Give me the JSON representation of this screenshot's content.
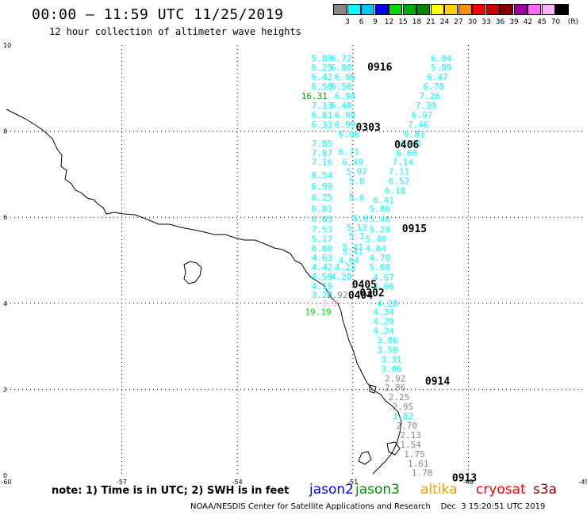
{
  "title": "00:00 — 11:59 UTC 11/25/2019",
  "subtitle": "12 hour collection of altimeter wave heights",
  "legend": {
    "unit": "(ft)",
    "items": [
      {
        "label": "3",
        "color": "#888888"
      },
      {
        "label": "6",
        "color": "#00ffff"
      },
      {
        "label": "9",
        "color": "#00c8ff"
      },
      {
        "label": "12",
        "color": "#0000ff"
      },
      {
        "label": "15",
        "color": "#00d800"
      },
      {
        "label": "18",
        "color": "#00b000"
      },
      {
        "label": "21",
        "color": "#008800"
      },
      {
        "label": "24",
        "color": "#ffff00"
      },
      {
        "label": "27",
        "color": "#ffd000"
      },
      {
        "label": "30",
        "color": "#ff9000"
      },
      {
        "label": "33",
        "color": "#ff0000"
      },
      {
        "label": "36",
        "color": "#c80000"
      },
      {
        "label": "39",
        "color": "#880000"
      },
      {
        "label": "42",
        "color": "#a000a0"
      },
      {
        "label": "45",
        "color": "#ff66ff"
      },
      {
        "label": "70",
        "color": "#ffb0ff"
      },
      {
        "label": "",
        "color": "#000000"
      }
    ]
  },
  "note": "note:  1) Time is in UTC;  2) SWH is in feet",
  "satellites": [
    {
      "name": "jason2",
      "color": "#0000ff"
    },
    {
      "name": "jason3",
      "color": "#009000"
    },
    {
      "name": "altika",
      "color": "#ff9900"
    },
    {
      "name": "cryosat",
      "color": "#ff0000"
    },
    {
      "name": "s3a",
      "color": "#990000"
    }
  ],
  "footer": "NOAA/NESDIS Center for Satellite Applications and Research    Dec  3 15:20:51 UTC 2019",
  "chart_data": {
    "type": "scatter",
    "xlim": [
      -60,
      -45
    ],
    "ylim": [
      0,
      10
    ],
    "xticks": [
      -60,
      -57,
      -54,
      -51,
      -48,
      -45
    ],
    "yticks": [
      0,
      2,
      4,
      6,
      8,
      10
    ],
    "grid": true,
    "time_labels": [
      {
        "text": "0916",
        "x": -50.3,
        "y": 9.5,
        "color": "#ff9900"
      },
      {
        "text": "0303",
        "x": -50.6,
        "y": 8.1,
        "color": "#ff0000"
      },
      {
        "text": "0406",
        "x": -49.6,
        "y": 7.7,
        "color": "#009000"
      },
      {
        "text": "0915",
        "x": -49.4,
        "y": 5.75,
        "color": "#ff9900"
      },
      {
        "text": "0405",
        "x": -50.7,
        "y": 4.45,
        "color": "#009000"
      },
      {
        "text": "0404",
        "x": -50.8,
        "y": 4.2,
        "color": "#009000"
      },
      {
        "text": "0302",
        "x": -50.5,
        "y": 4.25,
        "color": "#ff0000"
      },
      {
        "text": "0914",
        "x": -48.8,
        "y": 2.2,
        "color": "#ff9900"
      },
      {
        "text": "0913",
        "x": -48.1,
        "y": -0.05,
        "color": "#ff9900"
      }
    ],
    "points": [
      {
        "x": -51.8,
        "y": 9.7,
        "v": "5.89",
        "c": "#00ffff"
      },
      {
        "x": -51.3,
        "y": 9.7,
        "v": "6.72",
        "c": "#00ffff"
      },
      {
        "x": -48.7,
        "y": 9.7,
        "v": "6.04",
        "c": "#00ffff"
      },
      {
        "x": -51.8,
        "y": 9.48,
        "v": "6.25",
        "c": "#00ffff"
      },
      {
        "x": -51.3,
        "y": 9.48,
        "v": "6.80",
        "c": "#00ffff"
      },
      {
        "x": -48.7,
        "y": 9.48,
        "v": "5.89",
        "c": "#00ffff"
      },
      {
        "x": -51.8,
        "y": 9.26,
        "v": "6.42",
        "c": "#00ffff"
      },
      {
        "x": -51.2,
        "y": 9.26,
        "v": "6.95",
        "c": "#00ffff"
      },
      {
        "x": -48.8,
        "y": 9.26,
        "v": "6.47",
        "c": "#00ffff"
      },
      {
        "x": -51.8,
        "y": 9.04,
        "v": "6.58",
        "c": "#00ffff"
      },
      {
        "x": -51.3,
        "y": 9.04,
        "v": "6.58",
        "c": "#00ffff"
      },
      {
        "x": -48.9,
        "y": 9.04,
        "v": "6.78",
        "c": "#00ffff"
      },
      {
        "x": -52.0,
        "y": 8.82,
        "v": "16.31",
        "c": "#00b000"
      },
      {
        "x": -51.2,
        "y": 8.82,
        "v": "6.94",
        "c": "#00ffff"
      },
      {
        "x": -49.0,
        "y": 8.82,
        "v": "7.26",
        "c": "#00ffff"
      },
      {
        "x": -51.8,
        "y": 8.6,
        "v": "7.13",
        "c": "#00ffff"
      },
      {
        "x": -51.3,
        "y": 8.6,
        "v": "6.48",
        "c": "#00ffff"
      },
      {
        "x": -49.1,
        "y": 8.6,
        "v": "7.39",
        "c": "#00ffff"
      },
      {
        "x": -51.8,
        "y": 8.38,
        "v": "6.81",
        "c": "#00ffff"
      },
      {
        "x": -51.2,
        "y": 8.38,
        "v": "6.99",
        "c": "#00ffff"
      },
      {
        "x": -49.2,
        "y": 8.38,
        "v": "6.97",
        "c": "#00ffff"
      },
      {
        "x": -51.8,
        "y": 8.16,
        "v": "6.33",
        "c": "#00ffff"
      },
      {
        "x": -51.2,
        "y": 8.16,
        "v": "6.99",
        "c": "#00ffff"
      },
      {
        "x": -49.3,
        "y": 8.16,
        "v": "7.46",
        "c": "#00ffff"
      },
      {
        "x": -49.4,
        "y": 7.94,
        "v": "6.83",
        "c": "#00ffff"
      },
      {
        "x": -51.1,
        "y": 7.94,
        "v": "6.06",
        "c": "#00ffff"
      },
      {
        "x": -51.8,
        "y": 7.72,
        "v": "7.85",
        "c": "#00ffff"
      },
      {
        "x": -49.5,
        "y": 7.72,
        "v": "6.60",
        "c": "#00ffff"
      },
      {
        "x": -51.1,
        "y": 7.52,
        "v": "6.71",
        "c": "#00ffff"
      },
      {
        "x": -51.8,
        "y": 7.5,
        "v": "7.87",
        "c": "#00ffff"
      },
      {
        "x": -49.6,
        "y": 7.5,
        "v": "6.60",
        "c": "#00ffff"
      },
      {
        "x": -51.8,
        "y": 7.28,
        "v": "7.16",
        "c": "#00ffff"
      },
      {
        "x": -51.0,
        "y": 7.28,
        "v": "6.49",
        "c": "#00ffff"
      },
      {
        "x": -49.7,
        "y": 7.28,
        "v": "7.14",
        "c": "#00ffff"
      },
      {
        "x": -50.9,
        "y": 7.06,
        "v": "5.97",
        "c": "#00ffff"
      },
      {
        "x": -49.8,
        "y": 7.06,
        "v": "7.11",
        "c": "#00ffff"
      },
      {
        "x": -51.8,
        "y": 6.98,
        "v": "6.54",
        "c": "#00ffff"
      },
      {
        "x": -49.8,
        "y": 6.84,
        "v": "6.52",
        "c": "#00ffff"
      },
      {
        "x": -50.9,
        "y": 6.84,
        "v": "5.8",
        "c": "#00ffff"
      },
      {
        "x": -51.8,
        "y": 6.72,
        "v": "6.99",
        "c": "#00ffff"
      },
      {
        "x": -49.9,
        "y": 6.62,
        "v": "6.18",
        "c": "#00ffff"
      },
      {
        "x": -51.8,
        "y": 6.46,
        "v": "6.25",
        "c": "#00ffff"
      },
      {
        "x": -50.9,
        "y": 6.46,
        "v": "5.6",
        "c": "#00ffff"
      },
      {
        "x": -50.2,
        "y": 6.4,
        "v": "6.41",
        "c": "#00ffff"
      },
      {
        "x": -51.8,
        "y": 6.2,
        "v": "6.81",
        "c": "#00ffff"
      },
      {
        "x": -50.3,
        "y": 6.2,
        "v": "5.86",
        "c": "#00ffff"
      },
      {
        "x": -51.8,
        "y": 5.96,
        "v": "6.03",
        "c": "#00ffff"
      },
      {
        "x": -50.8,
        "y": 5.98,
        "v": "5.6",
        "c": "#00ffff"
      },
      {
        "x": -50.3,
        "y": 5.96,
        "v": "5.46",
        "c": "#00ffff"
      },
      {
        "x": -51.8,
        "y": 5.72,
        "v": "7.53",
        "c": "#00ffff"
      },
      {
        "x": -50.9,
        "y": 5.76,
        "v": "5.13",
        "c": "#00ffff"
      },
      {
        "x": -50.3,
        "y": 5.72,
        "v": "5.29",
        "c": "#00ffff"
      },
      {
        "x": -51.8,
        "y": 5.5,
        "v": "5.17",
        "c": "#00ffff"
      },
      {
        "x": -50.9,
        "y": 5.56,
        "v": "5.1",
        "c": "#00ffff"
      },
      {
        "x": -50.4,
        "y": 5.5,
        "v": "5.46",
        "c": "#00ffff"
      },
      {
        "x": -51.8,
        "y": 5.28,
        "v": "6.60",
        "c": "#00ffff"
      },
      {
        "x": -51.0,
        "y": 5.3,
        "v": "5.41",
        "c": "#00ffff"
      },
      {
        "x": -51.0,
        "y": 5.2,
        "v": "5.41",
        "c": "#00ffff"
      },
      {
        "x": -50.4,
        "y": 5.28,
        "v": "4.64",
        "c": "#00ffff"
      },
      {
        "x": -51.8,
        "y": 5.06,
        "v": "4.63",
        "c": "#00ffff"
      },
      {
        "x": -51.1,
        "y": 5.0,
        "v": "4.64",
        "c": "#00ffff"
      },
      {
        "x": -50.3,
        "y": 5.06,
        "v": "4.78",
        "c": "#00ffff"
      },
      {
        "x": -51.8,
        "y": 4.84,
        "v": "4.42",
        "c": "#00ffff"
      },
      {
        "x": -51.2,
        "y": 4.84,
        "v": "4.23",
        "c": "#00ffff"
      },
      {
        "x": -50.3,
        "y": 4.84,
        "v": "5.08",
        "c": "#00ffff"
      },
      {
        "x": -51.8,
        "y": 4.62,
        "v": "4.58",
        "c": "#00ffff"
      },
      {
        "x": -51.3,
        "y": 4.62,
        "v": "4.20",
        "c": "#00ffff"
      },
      {
        "x": -50.2,
        "y": 4.6,
        "v": "4.67",
        "c": "#00ffff"
      },
      {
        "x": -51.8,
        "y": 4.4,
        "v": "4.19",
        "c": "#00ffff"
      },
      {
        "x": -50.2,
        "y": 4.4,
        "v": "4.66",
        "c": "#00ffff"
      },
      {
        "x": -51.8,
        "y": 4.2,
        "v": "3.26",
        "c": "#00ffff"
      },
      {
        "x": -51.4,
        "y": 4.2,
        "v": "2.92",
        "c": "#888888"
      },
      {
        "x": -51.6,
        "y": 4.0,
        "v": "3.0",
        "c": "#ffb0ff"
      },
      {
        "x": -50.1,
        "y": 4.0,
        "v": "4.20",
        "c": "#00ffff"
      },
      {
        "x": -51.9,
        "y": 3.8,
        "v": "19.19",
        "c": "#00d800"
      },
      {
        "x": -50.2,
        "y": 3.8,
        "v": "4.34",
        "c": "#00ffff"
      },
      {
        "x": -50.2,
        "y": 3.58,
        "v": "4.29",
        "c": "#00ffff"
      },
      {
        "x": -50.2,
        "y": 3.36,
        "v": "4.24",
        "c": "#00ffff"
      },
      {
        "x": -50.1,
        "y": 3.14,
        "v": "3.86",
        "c": "#00ffff"
      },
      {
        "x": -50.1,
        "y": 2.92,
        "v": "3.50",
        "c": "#00ffff"
      },
      {
        "x": -50.0,
        "y": 2.7,
        "v": "3.31",
        "c": "#00ffff"
      },
      {
        "x": -50.0,
        "y": 2.48,
        "v": "3.06",
        "c": "#00ffff"
      },
      {
        "x": -49.9,
        "y": 2.26,
        "v": "2.92",
        "c": "#888888"
      },
      {
        "x": -49.9,
        "y": 2.04,
        "v": "2.86",
        "c": "#888888"
      },
      {
        "x": -49.8,
        "y": 1.82,
        "v": "2.25",
        "c": "#888888"
      },
      {
        "x": -49.7,
        "y": 1.6,
        "v": "2.95",
        "c": "#888888"
      },
      {
        "x": -49.7,
        "y": 1.38,
        "v": "3.82",
        "c": "#00ffff"
      },
      {
        "x": -49.6,
        "y": 1.16,
        "v": "2.70",
        "c": "#888888"
      },
      {
        "x": -49.5,
        "y": 0.94,
        "v": "2.13",
        "c": "#888888"
      },
      {
        "x": -49.5,
        "y": 0.72,
        "v": "1.54",
        "c": "#888888"
      },
      {
        "x": -49.4,
        "y": 0.5,
        "v": "1.75",
        "c": "#888888"
      },
      {
        "x": -49.3,
        "y": 0.28,
        "v": "1.61",
        "c": "#888888"
      },
      {
        "x": -49.2,
        "y": 0.06,
        "v": "1.78",
        "c": "#888888"
      }
    ]
  }
}
